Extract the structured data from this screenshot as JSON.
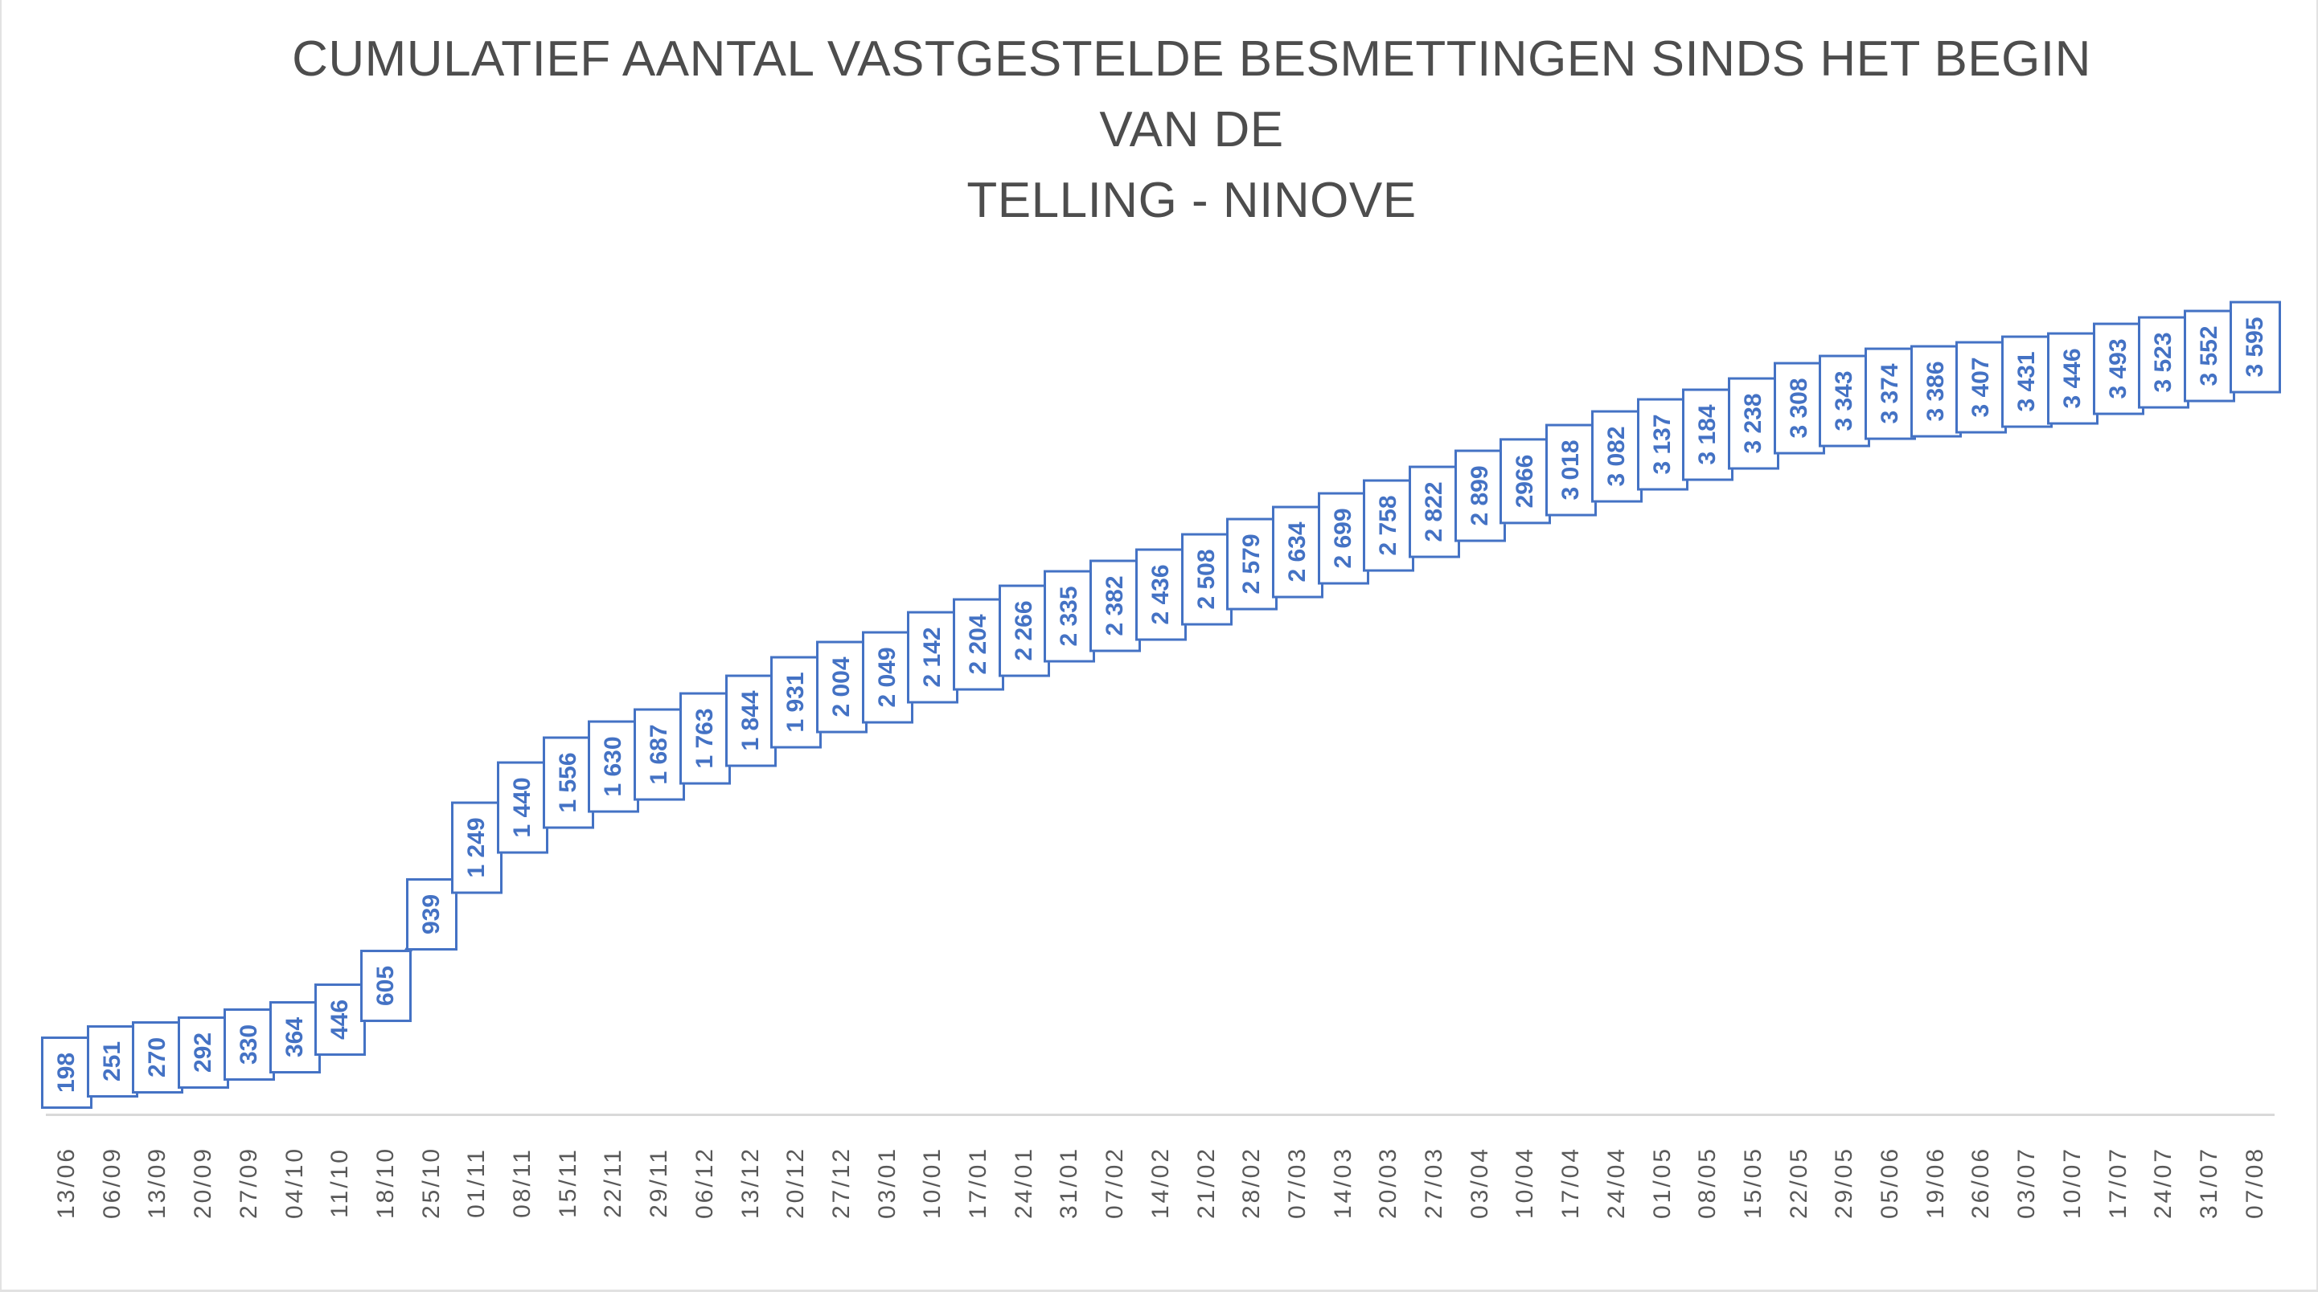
{
  "chart_data": {
    "type": "line",
    "title": "CUMULATIEF AANTAL VASTGESTELDE BESMETTINGEN SINDS HET BEGIN VAN DE TELLING - NINOVE",
    "title_line1": "CUMULATIEF AANTAL VASTGESTELDE BESMETTINGEN SINDS HET BEGIN VAN DE",
    "title_line2": "TELLING - NINOVE",
    "xlabel": "",
    "ylabel": "",
    "legend": "none",
    "grid": "off",
    "ylim": [
      0,
      3800
    ],
    "categories": [
      "13/06",
      "06/09",
      "13/09",
      "20/09",
      "27/09",
      "04/10",
      "11/10",
      "18/10",
      "25/10",
      "01/11",
      "08/11",
      "15/11",
      "22/11",
      "29/11",
      "06/12",
      "13/12",
      "20/12",
      "27/12",
      "03/01",
      "10/01",
      "17/01",
      "24/01",
      "31/01",
      "07/02",
      "14/02",
      "21/02",
      "28/02",
      "07/03",
      "14/03",
      "20/03",
      "27/03",
      "03/04",
      "10/04",
      "17/04",
      "24/04",
      "01/05",
      "08/05",
      "15/05",
      "22/05",
      "29/05",
      "05/06",
      "19/06",
      "26/06",
      "03/07",
      "10/07",
      "17/07",
      "24/07",
      "31/07",
      "07/08"
    ],
    "values": [
      198,
      251,
      270,
      292,
      330,
      364,
      446,
      605,
      939,
      1249,
      1440,
      1556,
      1630,
      1687,
      1763,
      1844,
      1931,
      2004,
      2049,
      2142,
      2204,
      2266,
      2335,
      2382,
      2436,
      2508,
      2579,
      2634,
      2699,
      2758,
      2822,
      2899,
      2966,
      3018,
      3082,
      3137,
      3184,
      3238,
      3308,
      3343,
      3374,
      3386,
      3407,
      3431,
      3446,
      3493,
      3523,
      3552,
      3595
    ],
    "data_labels": [
      "198",
      "251",
      "270",
      "292",
      "330",
      "364",
      "446",
      "605",
      "939",
      "1 249",
      "1 440",
      "1 556",
      "1 630",
      "1 687",
      "1 763",
      "1 844",
      "1 931",
      "2 004",
      "2 049",
      "2 142",
      "2 204",
      "2 266",
      "2 335",
      "2 382",
      "2 436",
      "2 508",
      "2 579",
      "2 634",
      "2 699",
      "2 758",
      "2 822",
      "2 899",
      "2966",
      "3 018",
      "3 082",
      "3 137",
      "3 184",
      "3 238",
      "3 308",
      "3 343",
      "3 374",
      "3 386",
      "3 407",
      "3 431",
      "3 446",
      "3 493",
      "3 523",
      "3 552",
      "3 595"
    ],
    "colors": {
      "series_line": "#4472C4",
      "label_border": "#4472C4",
      "label_text": "#4472C4",
      "label_fill": "#ffffff",
      "axis_line": "#d9d9d9",
      "tick_text": "#595959",
      "title_text": "#4d4d4d"
    }
  }
}
